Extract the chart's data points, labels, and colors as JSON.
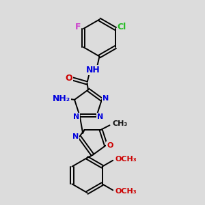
{
  "bg_color": "#dcdcdc",
  "bond_color": "#000000",
  "bond_width": 1.4,
  "dbo": 0.07,
  "atoms": {
    "F": {
      "color": "#cc44cc"
    },
    "Cl": {
      "color": "#22bb22"
    },
    "O": {
      "color": "#cc0000"
    },
    "N": {
      "color": "#0000dd"
    },
    "NH": {
      "color": "#0000dd"
    },
    "NH2": {
      "color": "#0000dd"
    }
  },
  "figsize": [
    3.0,
    3.0
  ],
  "dpi": 100,
  "xlim": [
    2.5,
    9.5
  ],
  "ylim": [
    0.3,
    10.3
  ]
}
